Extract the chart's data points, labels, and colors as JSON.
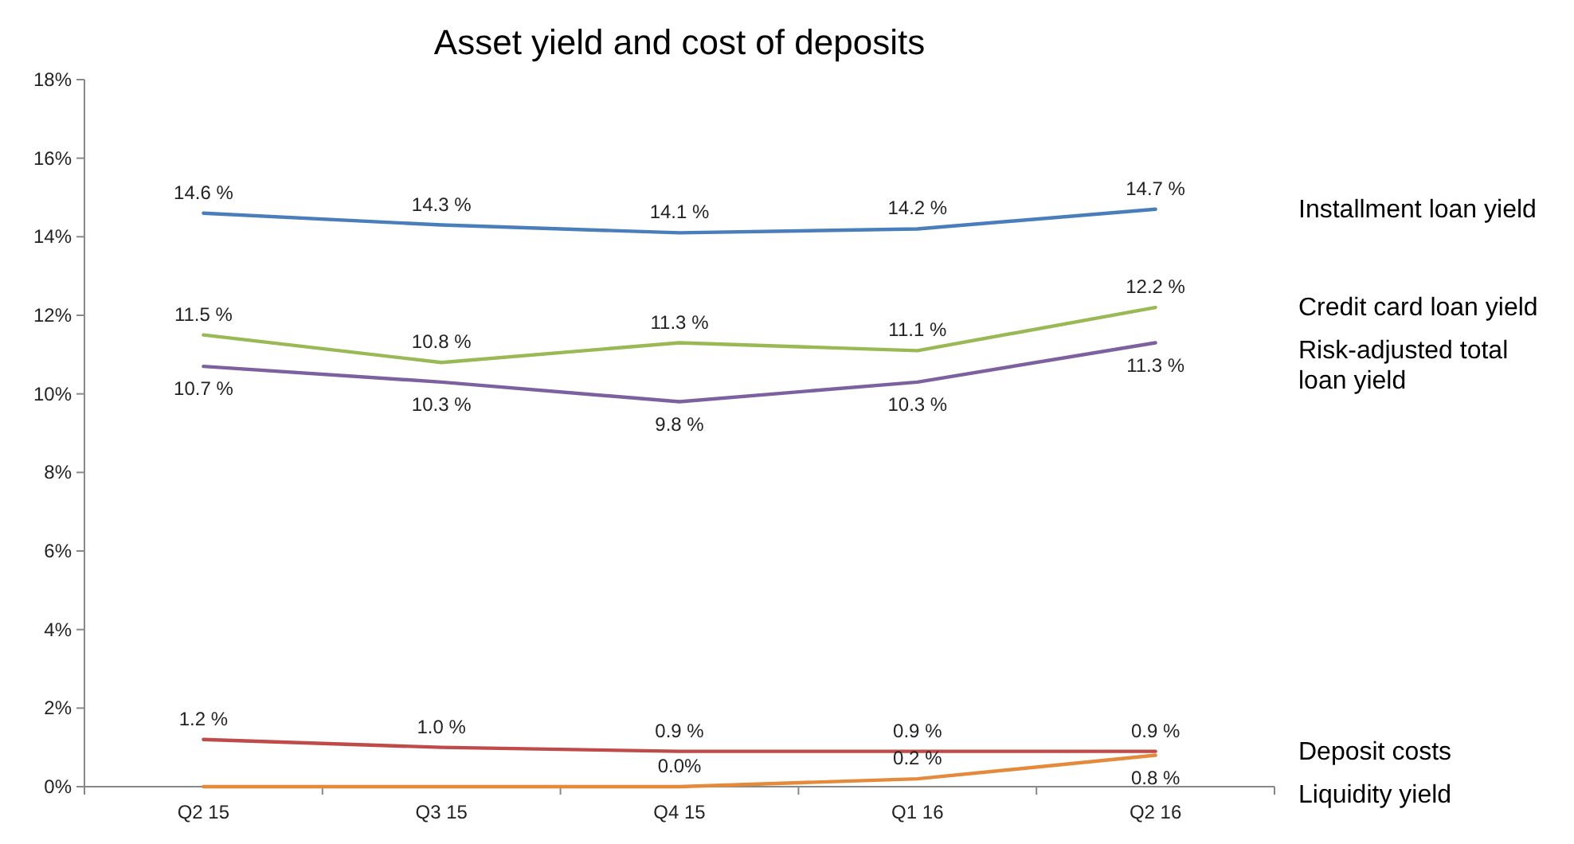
{
  "chart_data": {
    "type": "line",
    "title": "Asset yield and cost of deposits",
    "categories": [
      "Q2 15",
      "Q3 15",
      "Q4 15",
      "Q1 16",
      "Q2 16"
    ],
    "series": [
      {
        "name": "Installment loan yield",
        "color": "#4a7ebb",
        "values": [
          14.6,
          14.3,
          14.1,
          14.2,
          14.7
        ],
        "value_labels": [
          "14.6 %",
          "14.3 %",
          "14.1 %",
          "14.2 %",
          "14.7 %"
        ]
      },
      {
        "name": "Credit card loan yield",
        "color": "#98b954",
        "values": [
          11.5,
          10.8,
          11.3,
          11.1,
          12.2
        ],
        "value_labels": [
          "11.5 %",
          "10.8 %",
          "11.3 %",
          "11.1 %",
          "12.2 %"
        ]
      },
      {
        "name": "Risk-adjusted total loan yield",
        "color": "#7d60a0",
        "values": [
          10.7,
          10.3,
          9.8,
          10.3,
          11.3
        ],
        "value_labels": [
          "10.7 %",
          "10.3 %",
          "9.8 %",
          "10.3 %",
          "11.3 %"
        ]
      },
      {
        "name": "Deposit costs",
        "color": "#be4b48",
        "values": [
          1.2,
          1.0,
          0.9,
          0.9,
          0.9
        ],
        "value_labels": [
          "1.2 %",
          "1.0 %",
          "0.9 %",
          "0.9 %",
          "0.9 %"
        ]
      },
      {
        "name": "Liquidity yield",
        "color": "#e48a3a",
        "values": [
          0.0,
          0.0,
          0.0,
          0.2,
          0.8
        ],
        "value_labels": [
          null,
          null,
          "0.0%",
          "0.2 %",
          "0.8 %"
        ]
      }
    ],
    "ylim": [
      0,
      18
    ],
    "yticks": [
      {
        "value": 0,
        "label": "0%"
      },
      {
        "value": 2,
        "label": "2%"
      },
      {
        "value": 4,
        "label": "4%"
      },
      {
        "value": 6,
        "label": "6%"
      },
      {
        "value": 8,
        "label": "8%"
      },
      {
        "value": 10,
        "label": "10%"
      },
      {
        "value": 12,
        "label": "12%"
      },
      {
        "value": 14,
        "label": "14%"
      },
      {
        "value": 16,
        "label": "16%"
      },
      {
        "value": 18,
        "label": "18%"
      }
    ],
    "legend": "right",
    "marker": "none",
    "line_style": "solid"
  }
}
